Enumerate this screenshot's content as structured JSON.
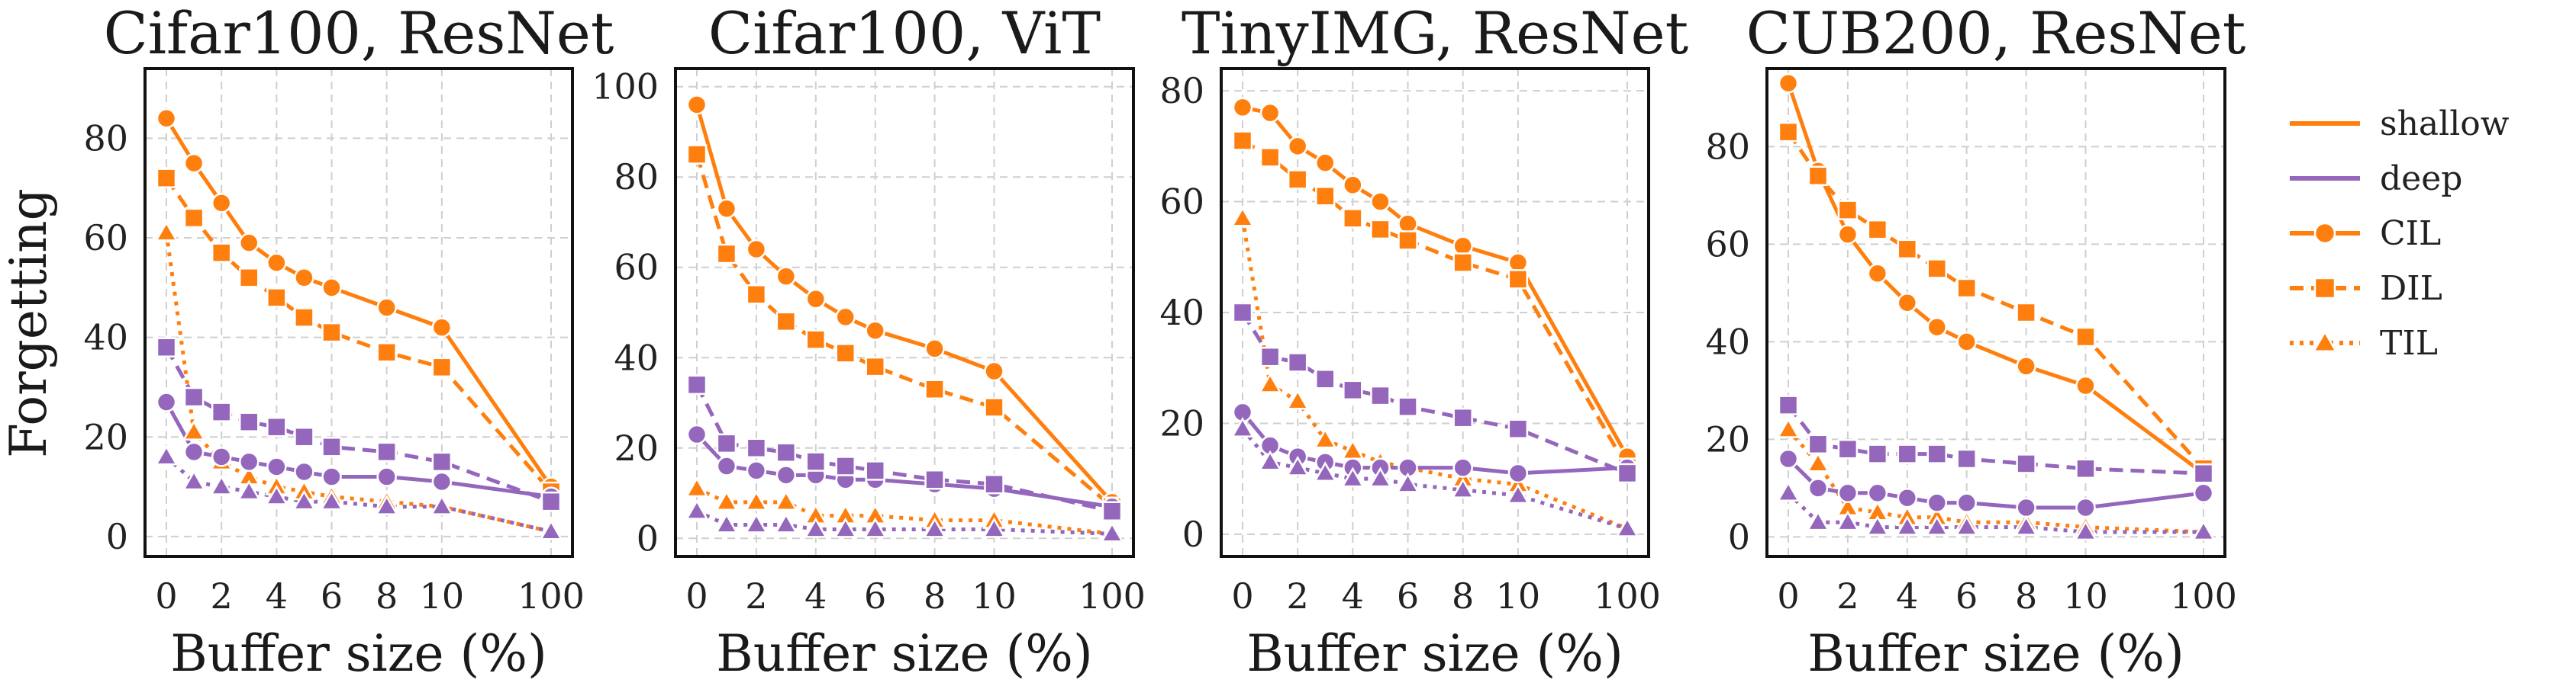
{
  "figure": {
    "ylabel": "Forgetting"
  },
  "legend": {
    "placement": "right, outside plots",
    "entries": [
      {
        "label": "shallow",
        "kind": "depth",
        "color": "#ff7f0e"
      },
      {
        "label": "deep",
        "kind": "depth",
        "color": "#9467bd"
      },
      {
        "label": "CIL",
        "kind": "setting",
        "marker": "circle",
        "dash": "solid"
      },
      {
        "label": "DIL",
        "kind": "setting",
        "marker": "square",
        "dash": "dashed"
      },
      {
        "label": "TIL",
        "kind": "setting",
        "marker": "triangle",
        "dash": "dotted"
      }
    ]
  },
  "chart_data": [
    {
      "type": "line",
      "title": "Cifar100, ResNet",
      "xlabel": "Buffer size (%)",
      "ylabel": "Forgetting",
      "x_tick_labels": [
        "0",
        "2",
        "4",
        "6",
        "8",
        "10",
        "100"
      ],
      "y_ticks": [
        0,
        20,
        40,
        60,
        80
      ],
      "ylim": [
        -4,
        94
      ],
      "grid": true,
      "x": [
        0,
        1,
        2,
        3,
        4,
        5,
        6,
        8,
        10,
        100
      ],
      "series": [
        {
          "name": "shallow CIL",
          "color": "#ff7f0e",
          "marker": "circle",
          "dash": "solid",
          "values": [
            84,
            75,
            67,
            59,
            55,
            52,
            50,
            46,
            42,
            10
          ]
        },
        {
          "name": "shallow DIL",
          "color": "#ff7f0e",
          "marker": "square",
          "dash": "dashed",
          "values": [
            72,
            64,
            57,
            52,
            48,
            44,
            41,
            37,
            34,
            9
          ]
        },
        {
          "name": "shallow TIL",
          "color": "#ff7f0e",
          "marker": "triangle",
          "dash": "dotted",
          "values": [
            61,
            21,
            15,
            12,
            10,
            9,
            8,
            7,
            6,
            1
          ]
        },
        {
          "name": "deep CIL",
          "color": "#9467bd",
          "marker": "circle",
          "dash": "solid",
          "values": [
            27,
            17,
            16,
            15,
            14,
            13,
            12,
            12,
            11,
            8
          ]
        },
        {
          "name": "deep DIL",
          "color": "#9467bd",
          "marker": "square",
          "dash": "dashed",
          "values": [
            38,
            28,
            25,
            23,
            22,
            20,
            18,
            17,
            15,
            7
          ]
        },
        {
          "name": "deep TIL",
          "color": "#9467bd",
          "marker": "triangle",
          "dash": "dotted",
          "values": [
            16,
            11,
            10,
            9,
            8,
            7,
            7,
            6,
            6,
            1
          ]
        }
      ]
    },
    {
      "type": "line",
      "title": "Cifar100, ViT",
      "xlabel": "Buffer size (%)",
      "ylabel": "",
      "x_tick_labels": [
        "0",
        "2",
        "4",
        "6",
        "8",
        "10",
        "100"
      ],
      "y_ticks": [
        0,
        20,
        40,
        60,
        80,
        100
      ],
      "ylim": [
        -4,
        104
      ],
      "grid": true,
      "x": [
        0,
        1,
        2,
        3,
        4,
        5,
        6,
        8,
        10,
        100
      ],
      "series": [
        {
          "name": "shallow CIL",
          "color": "#ff7f0e",
          "marker": "circle",
          "dash": "solid",
          "values": [
            96,
            73,
            64,
            58,
            53,
            49,
            46,
            42,
            37,
            8
          ]
        },
        {
          "name": "shallow DIL",
          "color": "#ff7f0e",
          "marker": "square",
          "dash": "dashed",
          "values": [
            85,
            63,
            54,
            48,
            44,
            41,
            38,
            33,
            29,
            7
          ]
        },
        {
          "name": "shallow TIL",
          "color": "#ff7f0e",
          "marker": "triangle",
          "dash": "dotted",
          "values": [
            11,
            8,
            8,
            8,
            5,
            5,
            5,
            4,
            4,
            1
          ]
        },
        {
          "name": "deep CIL",
          "color": "#9467bd",
          "marker": "circle",
          "dash": "solid",
          "values": [
            23,
            16,
            15,
            14,
            14,
            13,
            13,
            12,
            11,
            7
          ]
        },
        {
          "name": "deep DIL",
          "color": "#9467bd",
          "marker": "square",
          "dash": "dashed",
          "values": [
            34,
            21,
            20,
            19,
            17,
            16,
            15,
            13,
            12,
            6
          ]
        },
        {
          "name": "deep TIL",
          "color": "#9467bd",
          "marker": "triangle",
          "dash": "dotted",
          "values": [
            6,
            3,
            3,
            3,
            2,
            2,
            2,
            2,
            2,
            1
          ]
        }
      ]
    },
    {
      "type": "line",
      "title": "TinyIMG, ResNet",
      "xlabel": "Buffer size (%)",
      "ylabel": "",
      "x_tick_labels": [
        "0",
        "2",
        "4",
        "6",
        "8",
        "10",
        "100"
      ],
      "y_ticks": [
        0,
        20,
        40,
        60,
        80
      ],
      "ylim": [
        -4,
        84
      ],
      "grid": true,
      "x": [
        0,
        1,
        2,
        3,
        4,
        5,
        6,
        8,
        10,
        100
      ],
      "series": [
        {
          "name": "shallow CIL",
          "color": "#ff7f0e",
          "marker": "circle",
          "dash": "solid",
          "values": [
            77,
            76,
            70,
            67,
            63,
            60,
            56,
            52,
            49,
            14
          ]
        },
        {
          "name": "shallow DIL",
          "color": "#ff7f0e",
          "marker": "square",
          "dash": "dashed",
          "values": [
            71,
            68,
            64,
            61,
            57,
            55,
            53,
            49,
            46,
            12
          ]
        },
        {
          "name": "shallow TIL",
          "color": "#ff7f0e",
          "marker": "triangle",
          "dash": "dotted",
          "values": [
            57,
            27,
            24,
            17,
            15,
            13,
            12,
            10,
            9,
            1
          ]
        },
        {
          "name": "deep CIL",
          "color": "#9467bd",
          "marker": "circle",
          "dash": "solid",
          "values": [
            22,
            16,
            14,
            13,
            12,
            12,
            12,
            12,
            11,
            12
          ]
        },
        {
          "name": "deep DIL",
          "color": "#9467bd",
          "marker": "square",
          "dash": "dashed",
          "values": [
            40,
            32,
            31,
            28,
            26,
            25,
            23,
            21,
            19,
            11
          ]
        },
        {
          "name": "deep TIL",
          "color": "#9467bd",
          "marker": "triangle",
          "dash": "dotted",
          "values": [
            19,
            13,
            12,
            11,
            10,
            10,
            9,
            8,
            7,
            1
          ]
        }
      ]
    },
    {
      "type": "line",
      "title": "CUB200, ResNet",
      "xlabel": "Buffer size (%)",
      "ylabel": "",
      "x_tick_labels": [
        "0",
        "2",
        "4",
        "6",
        "8",
        "10",
        "100"
      ],
      "y_ticks": [
        0,
        20,
        40,
        60,
        80
      ],
      "ylim": [
        -4,
        96
      ],
      "grid": true,
      "x": [
        0,
        1,
        2,
        3,
        4,
        5,
        6,
        8,
        10,
        100
      ],
      "series": [
        {
          "name": "shallow CIL",
          "color": "#ff7f0e",
          "marker": "circle",
          "dash": "solid",
          "values": [
            93,
            75,
            62,
            54,
            48,
            43,
            40,
            35,
            31,
            13
          ]
        },
        {
          "name": "shallow DIL",
          "color": "#ff7f0e",
          "marker": "square",
          "dash": "dashed",
          "values": [
            83,
            74,
            67,
            63,
            59,
            55,
            51,
            46,
            41,
            14
          ]
        },
        {
          "name": "shallow TIL",
          "color": "#ff7f0e",
          "marker": "triangle",
          "dash": "dotted",
          "values": [
            22,
            15,
            6,
            5,
            4,
            4,
            3,
            3,
            2,
            1
          ]
        },
        {
          "name": "deep CIL",
          "color": "#9467bd",
          "marker": "circle",
          "dash": "solid",
          "values": [
            16,
            10,
            9,
            9,
            8,
            7,
            7,
            6,
            6,
            9
          ]
        },
        {
          "name": "deep DIL",
          "color": "#9467bd",
          "marker": "square",
          "dash": "dashed",
          "values": [
            27,
            19,
            18,
            17,
            17,
            17,
            16,
            15,
            14,
            13
          ]
        },
        {
          "name": "deep TIL",
          "color": "#9467bd",
          "marker": "triangle",
          "dash": "dotted",
          "values": [
            9,
            3,
            3,
            2,
            2,
            2,
            2,
            2,
            1,
            1
          ]
        }
      ]
    }
  ]
}
